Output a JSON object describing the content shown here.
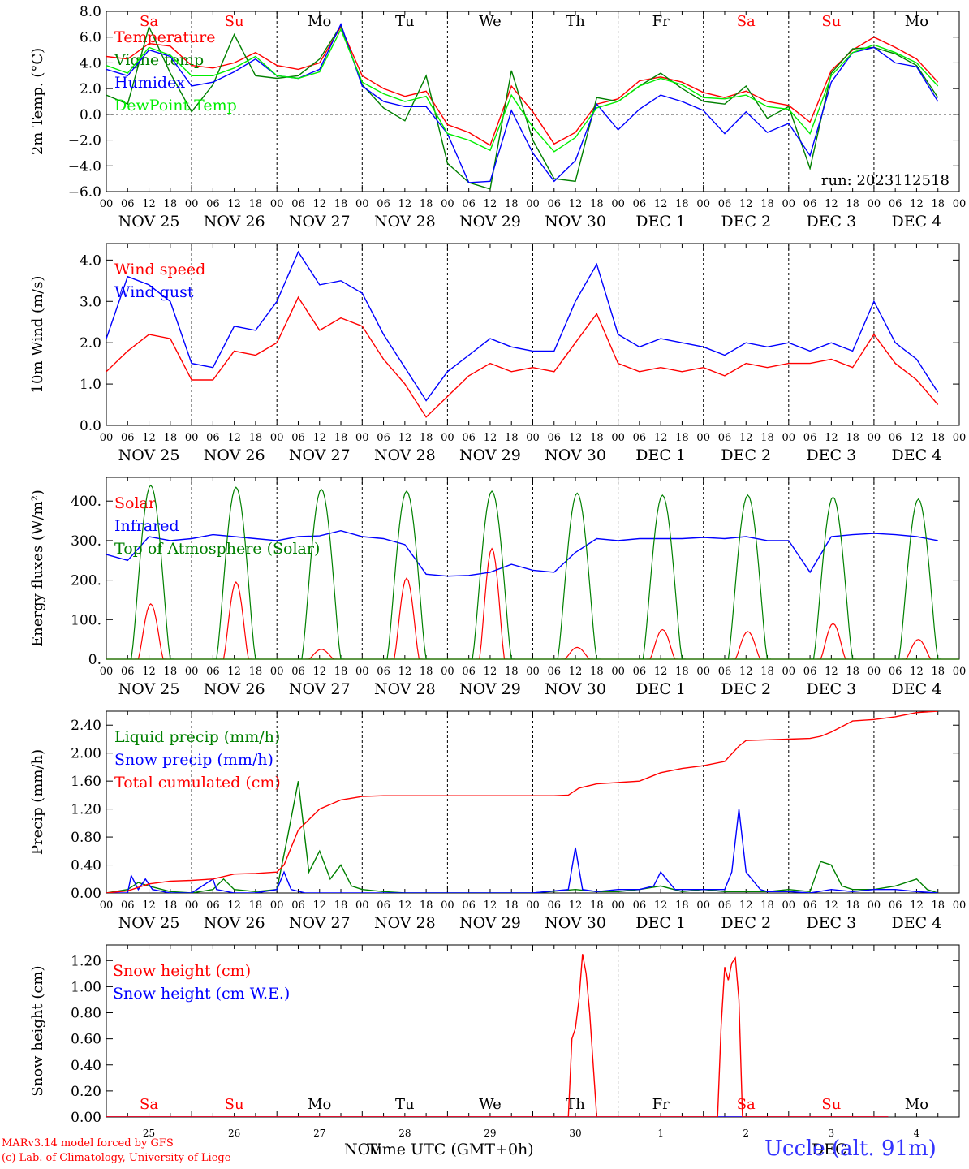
{
  "run_label": "run: 2023112518",
  "footer": {
    "model": "MARv3.14 model forced by GFS",
    "copyright": "(c) Lab. of Climatology, University of Liege",
    "station": "Uccle (alt. 91m)",
    "xlabel": "Time UTC (GMT+0h)",
    "month_left": "NOV",
    "month_right": "DEC"
  },
  "colors": {
    "red": "#ff0000",
    "green": "#008000",
    "blue": "#0000ff",
    "light_green": "#00ee00",
    "weekend": "#ff0000",
    "weekday": "#000000"
  },
  "day_names": [
    "Sa",
    "Su",
    "Mo",
    "Tu",
    "We",
    "Th",
    "Fr",
    "Sa",
    "Su",
    "Mo"
  ],
  "weekend_flags": [
    true,
    true,
    false,
    false,
    false,
    false,
    false,
    true,
    true,
    false
  ],
  "date_labels": [
    "NOV 25",
    "NOV 26",
    "NOV 27",
    "NOV 28",
    "NOV 29",
    "NOV 30",
    "DEC  1",
    "DEC  2",
    "DEC  3",
    "DEC  4"
  ],
  "hour_ticks": [
    "00",
    "06",
    "12",
    "18"
  ],
  "bottom_day_numbers": [
    "25",
    "26",
    "27",
    "28",
    "29",
    "30",
    "1",
    "2",
    "3",
    "4"
  ],
  "chart_data": [
    {
      "type": "line",
      "ylabel": "2m Temp. (°C)",
      "ylim": [
        -6,
        8
      ],
      "yticks": [
        "8.0",
        "6.0",
        "4.0",
        "2.0",
        "0.0",
        "−2.0",
        "−4.0",
        "−6.0"
      ],
      "zero_line": true,
      "x_unit": "hours since NOV 25 00 UTC",
      "series": [
        {
          "name": "Temperature",
          "color": "red",
          "x": [
            0,
            6,
            12,
            18,
            24,
            30,
            36,
            42,
            48,
            54,
            60,
            66,
            72,
            78,
            84,
            90,
            96,
            102,
            108,
            114,
            120,
            126,
            132,
            138,
            144,
            150,
            156,
            162,
            168,
            174,
            180,
            186,
            192,
            198,
            204,
            210,
            216,
            222,
            228,
            234
          ],
          "y": [
            4.5,
            4.3,
            5.5,
            5.3,
            3.8,
            3.6,
            4.0,
            4.8,
            3.8,
            3.5,
            4.0,
            6.8,
            3.0,
            2.0,
            1.4,
            1.8,
            -0.8,
            -1.4,
            -2.4,
            2.2,
            0.2,
            -2.3,
            -1.4,
            0.8,
            1.2,
            2.6,
            2.9,
            2.5,
            1.7,
            1.3,
            1.8,
            1.0,
            0.7,
            -0.6,
            3.4,
            5.0,
            6.0,
            5.2,
            4.3,
            2.5
          ]
        },
        {
          "name": "Vigne temp",
          "color": "green",
          "x": [
            0,
            6,
            12,
            18,
            24,
            30,
            36,
            42,
            48,
            54,
            60,
            66,
            72,
            78,
            84,
            90,
            96,
            102,
            108,
            114,
            120,
            126,
            132,
            138,
            144,
            150,
            156,
            162,
            168,
            174,
            180,
            186,
            192,
            198,
            204,
            210,
            216,
            222,
            228,
            234
          ],
          "y": [
            1.5,
            0.8,
            6.8,
            3.2,
            0.2,
            2.3,
            6.2,
            3.0,
            2.8,
            3.0,
            4.3,
            6.9,
            2.3,
            0.5,
            -0.5,
            3.0,
            -3.8,
            -5.3,
            -5.8,
            3.4,
            -2.0,
            -5.0,
            -5.2,
            1.3,
            1.0,
            2.2,
            3.2,
            2.0,
            1.0,
            0.8,
            2.2,
            -0.3,
            0.6,
            -4.2,
            3.2,
            5.1,
            5.2,
            4.7,
            3.8,
            1.3
          ]
        },
        {
          "name": "Humidex",
          "color": "blue",
          "x": [
            0,
            6,
            12,
            18,
            24,
            30,
            36,
            42,
            48,
            54,
            60,
            66,
            72,
            78,
            84,
            90,
            96,
            102,
            108,
            114,
            120,
            126,
            132,
            138,
            144,
            150,
            156,
            162,
            168,
            174,
            180,
            186,
            192,
            198,
            204,
            210,
            216,
            222,
            228,
            234
          ],
          "y": [
            3.5,
            3.0,
            5.0,
            4.5,
            2.2,
            2.5,
            3.3,
            4.3,
            3.0,
            2.8,
            3.5,
            7.0,
            2.2,
            1.0,
            0.6,
            0.6,
            -1.5,
            -5.3,
            -5.2,
            0.3,
            -3.0,
            -5.2,
            -3.6,
            0.8,
            -1.2,
            0.4,
            1.5,
            1.0,
            0.3,
            -1.5,
            0.2,
            -1.4,
            -0.7,
            -3.2,
            2.5,
            4.8,
            5.2,
            4.0,
            3.7,
            1.0
          ]
        },
        {
          "name": "DewPoint Temp",
          "color": "light_green",
          "x": [
            0,
            6,
            12,
            18,
            24,
            30,
            36,
            42,
            48,
            54,
            60,
            66,
            72,
            78,
            84,
            90,
            96,
            102,
            108,
            114,
            120,
            126,
            132,
            138,
            144,
            150,
            156,
            162,
            168,
            174,
            180,
            186,
            192,
            198,
            204,
            210,
            216,
            222,
            228,
            234
          ],
          "y": [
            3.8,
            3.2,
            5.2,
            4.6,
            3.0,
            3.0,
            3.6,
            4.5,
            3.0,
            2.8,
            3.3,
            6.6,
            2.5,
            1.6,
            1.0,
            1.4,
            -1.5,
            -2.0,
            -2.8,
            1.5,
            -1.0,
            -2.9,
            -1.8,
            0.5,
            1.0,
            2.2,
            2.8,
            2.3,
            1.3,
            1.2,
            1.5,
            0.6,
            0.4,
            -1.5,
            3.0,
            4.8,
            5.4,
            4.8,
            4.0,
            2.2
          ]
        }
      ]
    },
    {
      "type": "line",
      "ylabel": "10m Wind (m/s)",
      "ylim": [
        0,
        4.4
      ],
      "yticks": [
        "4.0",
        "3.0",
        "2.0",
        "1.0",
        "0.0"
      ],
      "x_unit": "hours since NOV 25 00 UTC",
      "series": [
        {
          "name": "Wind speed",
          "color": "red",
          "x": [
            0,
            6,
            12,
            18,
            24,
            30,
            36,
            42,
            48,
            54,
            60,
            66,
            72,
            78,
            84,
            90,
            96,
            102,
            108,
            114,
            120,
            126,
            132,
            138,
            144,
            150,
            156,
            162,
            168,
            174,
            180,
            186,
            192,
            198,
            204,
            210,
            216,
            222,
            228,
            234
          ],
          "y": [
            1.3,
            1.8,
            2.2,
            2.1,
            1.1,
            1.1,
            1.8,
            1.7,
            2.0,
            3.1,
            2.3,
            2.6,
            2.4,
            1.6,
            1.0,
            0.2,
            0.7,
            1.2,
            1.5,
            1.3,
            1.4,
            1.3,
            2.0,
            2.7,
            1.5,
            1.3,
            1.4,
            1.3,
            1.4,
            1.2,
            1.5,
            1.4,
            1.5,
            1.5,
            1.6,
            1.4,
            2.2,
            1.5,
            1.1,
            0.5
          ]
        },
        {
          "name": "Wind gust",
          "color": "blue",
          "x": [
            0,
            6,
            12,
            18,
            24,
            30,
            36,
            42,
            48,
            54,
            60,
            66,
            72,
            78,
            84,
            90,
            96,
            102,
            108,
            114,
            120,
            126,
            132,
            138,
            144,
            150,
            156,
            162,
            168,
            174,
            180,
            186,
            192,
            198,
            204,
            210,
            216,
            222,
            228,
            234
          ],
          "y": [
            2.1,
            3.6,
            3.4,
            3.0,
            1.5,
            1.4,
            2.4,
            2.3,
            3.0,
            4.2,
            3.4,
            3.5,
            3.2,
            2.2,
            1.4,
            0.6,
            1.3,
            1.7,
            2.1,
            1.9,
            1.8,
            1.8,
            3.0,
            3.9,
            2.2,
            1.9,
            2.1,
            2.0,
            1.9,
            1.7,
            2.0,
            1.9,
            2.0,
            1.8,
            2.0,
            1.8,
            3.0,
            2.0,
            1.6,
            0.8
          ]
        }
      ]
    },
    {
      "type": "line",
      "ylabel": "Energy fluxes (W/m²)",
      "ylim": [
        0,
        460
      ],
      "yticks": [
        "400.",
        "300.",
        "200.",
        "100.",
        "0."
      ],
      "x_unit": "hours since NOV 25 00 UTC",
      "series": [
        {
          "name": "Solar",
          "color": "red",
          "day_peaks": [
            140,
            195,
            25,
            205,
            280,
            30,
            75,
            70,
            90,
            50
          ]
        },
        {
          "name": "Infrared",
          "color": "blue",
          "x": [
            0,
            6,
            12,
            18,
            24,
            30,
            36,
            42,
            48,
            54,
            60,
            66,
            72,
            78,
            84,
            90,
            96,
            102,
            108,
            114,
            120,
            126,
            132,
            138,
            144,
            150,
            156,
            162,
            168,
            174,
            180,
            186,
            192,
            198,
            204,
            210,
            216,
            222,
            228,
            234
          ],
          "y": [
            265,
            250,
            310,
            300,
            305,
            315,
            310,
            305,
            300,
            310,
            312,
            325,
            310,
            305,
            290,
            215,
            210,
            212,
            220,
            240,
            225,
            220,
            270,
            305,
            300,
            305,
            305,
            305,
            308,
            305,
            310,
            300,
            300,
            220,
            310,
            315,
            318,
            315,
            310,
            300
          ]
        },
        {
          "name": "Top of Atmosphere (Solar)",
          "color": "green",
          "day_peaks": [
            440,
            435,
            430,
            425,
            425,
            420,
            415,
            415,
            410,
            405
          ]
        }
      ]
    },
    {
      "type": "line",
      "ylabel": "Precip (mm/h)",
      "ylim": [
        0,
        2.6
      ],
      "yticks": [
        "2.40",
        "2.00",
        "1.60",
        "1.20",
        "0.80",
        "0.40",
        "0.00"
      ],
      "x_unit": "hours since NOV 25 00 UTC",
      "series": [
        {
          "name": "Liquid precip (mm/h)",
          "color": "green",
          "x": [
            0,
            6,
            9,
            12,
            18,
            24,
            30,
            33,
            36,
            42,
            48,
            51,
            54,
            57,
            60,
            63,
            66,
            69,
            72,
            78,
            84,
            96,
            108,
            120,
            132,
            138,
            144,
            150,
            156,
            162,
            168,
            174,
            180,
            186,
            192,
            198,
            201,
            204,
            207,
            210,
            216,
            222,
            228,
            231,
            234
          ],
          "y": [
            0,
            0.05,
            0.15,
            0.1,
            0.02,
            0,
            0.05,
            0.2,
            0.05,
            0.02,
            0.05,
            0.8,
            1.6,
            0.3,
            0.6,
            0.2,
            0.4,
            0.1,
            0.05,
            0.02,
            0,
            0,
            0,
            0,
            0.05,
            0.02,
            0.02,
            0.05,
            0.1,
            0.02,
            0.05,
            0.02,
            0.02,
            0.02,
            0.05,
            0.02,
            0.45,
            0.4,
            0.1,
            0.05,
            0.05,
            0.1,
            0.2,
            0.05,
            0
          ]
        },
        {
          "name": "Snow precip (mm/h)",
          "color": "blue",
          "x": [
            0,
            6,
            7,
            9,
            11,
            13,
            18,
            24,
            30,
            31,
            36,
            42,
            48,
            50,
            52,
            56,
            60,
            66,
            72,
            84,
            96,
            108,
            120,
            130,
            132,
            134,
            138,
            144,
            150,
            154,
            156,
            160,
            168,
            174,
            176,
            178,
            180,
            184,
            186,
            192,
            198,
            204,
            210,
            216,
            222,
            228,
            234
          ],
          "y": [
            0,
            0,
            0.25,
            0.05,
            0.2,
            0.05,
            0,
            0,
            0.2,
            0.05,
            0,
            0,
            0.05,
            0.3,
            0.05,
            0,
            0,
            0,
            0,
            0,
            0,
            0,
            0,
            0.05,
            0.65,
            0.05,
            0.02,
            0.05,
            0.05,
            0.1,
            0.3,
            0.05,
            0.05,
            0.05,
            0.3,
            1.2,
            0.3,
            0.05,
            0.02,
            0.02,
            0,
            0.05,
            0.02,
            0.05,
            0.05,
            0.02,
            0
          ]
        },
        {
          "name": "Total cumulated (cm)",
          "color": "red",
          "x": [
            0,
            6,
            12,
            18,
            24,
            30,
            36,
            42,
            48,
            50,
            54,
            60,
            66,
            72,
            78,
            84,
            96,
            108,
            120,
            126,
            130,
            133,
            138,
            144,
            150,
            156,
            162,
            168,
            174,
            178,
            180,
            186,
            192,
            198,
            201,
            204,
            210,
            216,
            222,
            228,
            234
          ],
          "y": [
            0,
            0.03,
            0.13,
            0.17,
            0.18,
            0.2,
            0.27,
            0.28,
            0.3,
            0.4,
            0.9,
            1.2,
            1.33,
            1.38,
            1.39,
            1.39,
            1.39,
            1.39,
            1.39,
            1.39,
            1.4,
            1.5,
            1.56,
            1.58,
            1.6,
            1.72,
            1.78,
            1.82,
            1.88,
            2.1,
            2.18,
            2.19,
            2.2,
            2.21,
            2.24,
            2.3,
            2.46,
            2.48,
            2.52,
            2.58,
            2.6
          ]
        }
      ]
    },
    {
      "type": "line",
      "ylabel": "Snow height (cm)",
      "ylim": [
        0,
        1.32
      ],
      "yticks": [
        "1.20",
        "1.00",
        "0.80",
        "0.60",
        "0.40",
        "0.20",
        "0.00"
      ],
      "x_unit": "hours since NOV 25 00 UTC",
      "series": [
        {
          "name": "Snow height (cm)",
          "color": "red",
          "x": [
            0,
            130,
            131,
            132,
            133,
            134,
            135,
            136,
            138,
            139,
            140,
            220
          ],
          "y": [
            0,
            0,
            0.6,
            0.68,
            0.9,
            1.25,
            1.1,
            0.8,
            0,
            0,
            0,
            0
          ]
        },
        {
          "name": "Snow height (cm W.E.)",
          "color": "blue",
          "x": [
            0,
            220
          ],
          "y": [
            0,
            0
          ]
        }
      ],
      "series_2": {
        "x": [
          0,
          172,
          173,
          174,
          175,
          176,
          177,
          178,
          179,
          180,
          220
        ],
        "y": [
          0,
          0,
          0.7,
          1.15,
          1.05,
          1.18,
          1.22,
          0.9,
          0,
          0,
          0
        ]
      }
    }
  ]
}
